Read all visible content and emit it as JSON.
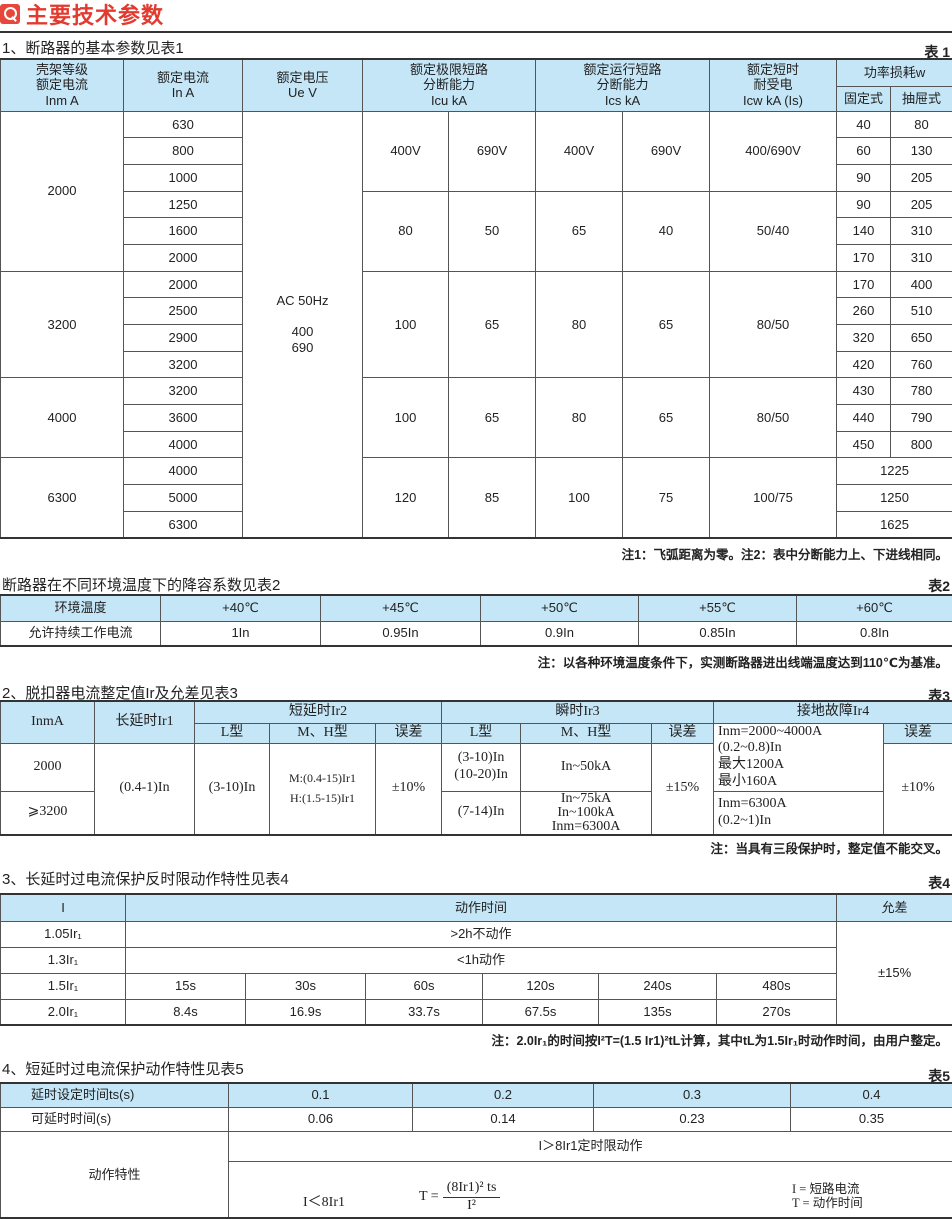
{
  "title": "主要技术参数",
  "colors": {
    "accent": "#e23a2f",
    "header_bg": "#c5e6f7"
  },
  "t1": {
    "heading": "1、断路器的基本参数见表1",
    "tag": "表 1",
    "headers": [
      "壳架等级\n额定电流\nInm A",
      "额定电流\nIn A",
      "额定电压\nUe V",
      "额定极限短路\n分断能力\nIcu kA",
      "额定运行短路\n分断能力\nIcs kA",
      "额定短时\n耐受电\nIcw kA (Is)",
      "功率损耗w"
    ],
    "power_sub": [
      "固定式",
      "抽屉式"
    ],
    "frames": [
      "2000",
      "3200",
      "4000",
      "6300"
    ],
    "ratings": [
      "630",
      "800",
      "1000",
      "1250",
      "1600",
      "2000",
      "2000",
      "2500",
      "2900",
      "3200",
      "3200",
      "3600",
      "4000",
      "4000",
      "5000",
      "6300"
    ],
    "ue": "AC 50Hz\n\n400\n690",
    "icu": [
      [
        "400V",
        "690V"
      ],
      [
        "80",
        "50"
      ],
      [
        "100",
        "65"
      ],
      [
        "100",
        "65"
      ],
      [
        "120",
        "85"
      ]
    ],
    "ics": [
      [
        "400V",
        "690V"
      ],
      [
        "65",
        "40"
      ],
      [
        "80",
        "65"
      ],
      [
        "80",
        "65"
      ],
      [
        "100",
        "75"
      ]
    ],
    "icw": [
      "400/690V",
      "50/40",
      "80/50",
      "80/50",
      "100/75"
    ],
    "power": [
      [
        "40",
        "80"
      ],
      [
        "60",
        "130"
      ],
      [
        "90",
        "205"
      ],
      [
        "90",
        "205"
      ],
      [
        "140",
        "310"
      ],
      [
        "170",
        "310"
      ],
      [
        "170",
        "400"
      ],
      [
        "260",
        "510"
      ],
      [
        "320",
        "650"
      ],
      [
        "420",
        "760"
      ],
      [
        "430",
        "780"
      ],
      [
        "440",
        "790"
      ],
      [
        "450",
        "800"
      ]
    ],
    "power6300": [
      "1225",
      "1250",
      "1625"
    ],
    "note": "注1：飞弧距离为零。注2：表中分断能力上、下进线相同。"
  },
  "t2": {
    "heading": "断路器在不同环境温度下的降容系数见表2",
    "tag": "表2",
    "row_labels": [
      "环境温度",
      "允许持续工作电流"
    ],
    "temps": [
      "+40℃",
      "+45℃",
      "+50℃",
      "+55℃",
      "+60℃"
    ],
    "currents": [
      "1In",
      "0.95In",
      "0.9In",
      "0.85In",
      "0.8In"
    ],
    "note": "注：以各种环境温度条件下，实测断路器进出线端温度达到110℃为基准。"
  },
  "t3": {
    "heading": "2、脱扣器电流整定值Ir及允差见表3",
    "tag": "表3",
    "h1": [
      "InmA",
      "长延时Ir1",
      "短延时Ir2",
      "瞬时Ir3",
      "接地故障Ir4"
    ],
    "h2": [
      "L型",
      "M、H型",
      "误差",
      "L型",
      "M、H型",
      "误差",
      "误差"
    ],
    "inm": [
      "2000",
      "⩾3200"
    ],
    "ir1": "(0.4-1)In",
    "ir2_l": "(3-10)In",
    "ir2_mh": "M:(0.4-15)Ir1\nH:(1.5-15)Ir1",
    "ir2_err": "±10%",
    "ir3_l": [
      "(3-10)In\n(10-20)In",
      "(7-14)In"
    ],
    "ir3_mh": [
      "In~50kA",
      "In~75kA\nIn~100kA\nInm=6300A"
    ],
    "ir3_err": "±15%",
    "ir4": [
      "Inm=2000~4000A\n(0.2~0.8)In\n最大1200A\n最小160A",
      "Inm=6300A\n(0.2~1)In"
    ],
    "ir4_err": "±10%",
    "note": "注：当具有三段保护时，整定值不能交叉。"
  },
  "t4": {
    "heading": "3、长延时过电流保护反时限动作特性见表4",
    "tag": "表4",
    "headers": [
      "I",
      "动作时间",
      "允差"
    ],
    "rows": [
      "1.05Ir₁",
      "1.3Ir₁",
      "1.5Ir₁",
      "2.0Ir₁"
    ],
    "r1": ">2h不动作",
    "r2": "<1h动作",
    "r3": [
      "15s",
      "30s",
      "60s",
      "120s",
      "240s",
      "480s"
    ],
    "r4": [
      "8.4s",
      "16.9s",
      "33.7s",
      "67.5s",
      "135s",
      "270s"
    ],
    "tol": "±15%",
    "note": "注：2.0Ir₁的时间按I²T=(1.5 Ir1)²tL计算，其中tL为1.5Ir₁时动作时间，由用户整定。"
  },
  "t5": {
    "heading": "4、短延时过电流保护动作特性见表5",
    "tag": "表5",
    "labels": [
      "延时设定时间ts(s)",
      "可延时时间(s)",
      "动作特性"
    ],
    "ts": [
      "0.1",
      "0.2",
      "0.3",
      "0.4"
    ],
    "delay": [
      "0.06",
      "0.14",
      "0.23",
      "0.35"
    ],
    "definite": "I＞8Ir1定时限动作",
    "inverse_cond": "I＜8Ir1",
    "formula": {
      "lhs": "T =",
      "num": "(8Ir1)² ts",
      "den": "I²"
    },
    "legend": "I = 短路电流\nT = 动作时间"
  }
}
